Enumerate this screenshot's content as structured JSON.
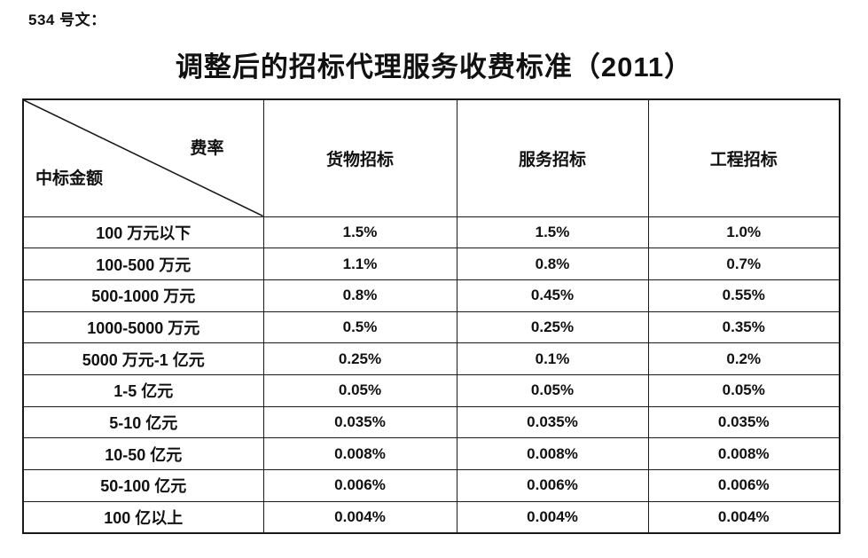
{
  "doc": {
    "doc_number": "534 号文：",
    "title": "调整后的招标代理服务收费标准（2011）"
  },
  "table": {
    "corner": {
      "top_right": "费率",
      "bottom_left": "中标金额"
    },
    "columns": [
      "货物招标",
      "服务招标",
      "工程招标"
    ],
    "rows": [
      {
        "label": "100 万元以下",
        "values": [
          "1.5%",
          "1.5%",
          "1.0%"
        ]
      },
      {
        "label": "100-500 万元",
        "values": [
          "1.1%",
          "0.8%",
          "0.7%"
        ]
      },
      {
        "label": "500-1000 万元",
        "values": [
          "0.8%",
          "0.45%",
          "0.55%"
        ]
      },
      {
        "label": "1000-5000 万元",
        "values": [
          "0.5%",
          "0.25%",
          "0.35%"
        ]
      },
      {
        "label": "5000 万元-1 亿元",
        "values": [
          "0.25%",
          "0.1%",
          "0.2%"
        ]
      },
      {
        "label": "1-5 亿元",
        "values": [
          "0.05%",
          "0.05%",
          "0.05%"
        ]
      },
      {
        "label": "5-10 亿元",
        "values": [
          "0.035%",
          "0.035%",
          "0.035%"
        ]
      },
      {
        "label": "10-50 亿元",
        "values": [
          "0.008%",
          "0.008%",
          "0.008%"
        ]
      },
      {
        "label": "50-100 亿元",
        "values": [
          "0.006%",
          "0.006%",
          "0.006%"
        ]
      },
      {
        "label": "100 亿以上",
        "values": [
          "0.004%",
          "0.004%",
          "0.004%"
        ]
      }
    ]
  },
  "colors": {
    "text": "#111111",
    "border": "#1a1a1a",
    "background": "#ffffff"
  }
}
